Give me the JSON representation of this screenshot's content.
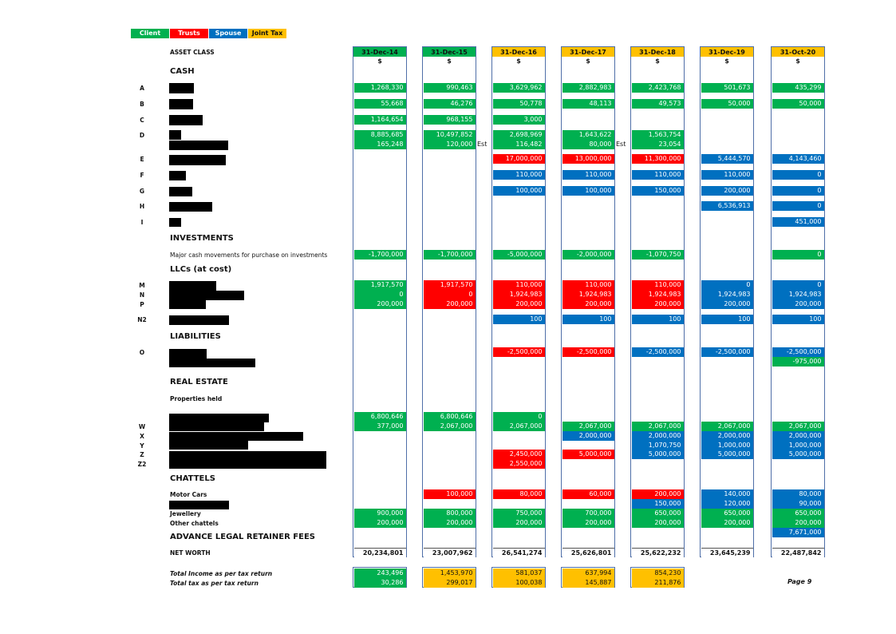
{
  "legend": [
    {
      "label": "Client",
      "color": "#00b050"
    },
    {
      "label": "Trusts",
      "color": "#ff0000"
    },
    {
      "label": "Spouse",
      "color": "#0070c0"
    },
    {
      "label": "Joint Tax",
      "color": "#ffc000"
    }
  ],
  "labels": {
    "asset_class": "ASSET CLASS",
    "cash": "CASH",
    "investments": "INVESTMENTS",
    "major_cash": "Major cash movements for purchase on investments",
    "llcs": "LLCs  (at cost)",
    "liabilities": "LIABILITIES",
    "real_estate": "REAL ESTATE",
    "properties_held": "Properties held",
    "chattels": "CHATTELS",
    "motor_cars": "Motor Cars",
    "jewellery": "Jewellery",
    "other_chattels": "Other chattels",
    "advance_legal": "ADVANCE LEGAL RETAINER FEES",
    "net_worth": "NET WORTH",
    "total_income": "Total Income as per tax return",
    "total_tax": "Total tax as per tax return",
    "page": "Page 9",
    "currency": "$",
    "est": "Est"
  },
  "letters": {
    "A": "A",
    "B": "B",
    "C": "C",
    "D": "D",
    "E": "E",
    "F": "F",
    "G": "G",
    "H": "H",
    "I": "I",
    "M": "M",
    "N": "N",
    "P": "P",
    "N2": "N2",
    "O": "O",
    "W": "W",
    "X": "X",
    "Y": "Y",
    "Z": "Z",
    "Z2": "Z2"
  },
  "colors": {
    "client": "#00b050",
    "trusts": "#ff0000",
    "spouse": "#0070c0",
    "joint_tax": "#ffc000",
    "border": "#4f6fa8"
  },
  "columns": [
    {
      "header": "31-Dec-14",
      "header_color": "G",
      "cells": [
        [
          "A",
          "1,268,330",
          "G"
        ],
        [
          "B",
          "55,668",
          "G"
        ],
        [
          "C",
          "1,164,654",
          "G"
        ],
        [
          "D1",
          "8,885,685",
          "G"
        ],
        [
          "D2",
          "165,248",
          "G"
        ],
        [
          "INV",
          "-1,700,000",
          "G"
        ],
        [
          "M",
          "1,917,570",
          "G"
        ],
        [
          "N",
          "0",
          "G"
        ],
        [
          "P",
          "200,000",
          "G"
        ],
        [
          "W0",
          "6,800,646",
          "G"
        ],
        [
          "W",
          "377,000",
          "G"
        ],
        [
          "J",
          "900,000",
          "G"
        ],
        [
          "OC",
          "200,000",
          "G"
        ],
        [
          "NW",
          "20,234,801",
          "W"
        ],
        [
          "TI",
          "243,496",
          "G"
        ],
        [
          "TT",
          "30,286",
          "G"
        ]
      ]
    },
    {
      "header": "31-Dec-15",
      "header_color": "G",
      "est": "D2",
      "cells": [
        [
          "A",
          "990,463",
          "G"
        ],
        [
          "B",
          "46,276",
          "G"
        ],
        [
          "C",
          "968,155",
          "G"
        ],
        [
          "D1",
          "10,497,852",
          "G"
        ],
        [
          "D2",
          "120,000",
          "G"
        ],
        [
          "INV",
          "-1,700,000",
          "G"
        ],
        [
          "M",
          "1,917,570",
          "R"
        ],
        [
          "N",
          "0",
          "R"
        ],
        [
          "P",
          "200,000",
          "R"
        ],
        [
          "W0",
          "6,800,646",
          "G"
        ],
        [
          "W",
          "2,067,000",
          "G"
        ],
        [
          "MC",
          "100,000",
          "R"
        ],
        [
          "J",
          "800,000",
          "G"
        ],
        [
          "OC",
          "200,000",
          "G"
        ],
        [
          "NW",
          "23,007,962",
          "W"
        ],
        [
          "TI",
          "1,453,970",
          "Y"
        ],
        [
          "TT",
          "299,017",
          "Y"
        ]
      ]
    },
    {
      "header": "31-Dec-16",
      "header_color": "Y",
      "cells": [
        [
          "A",
          "3,629,962",
          "G"
        ],
        [
          "B",
          "50,778",
          "G"
        ],
        [
          "C",
          "3,000",
          "G"
        ],
        [
          "D1",
          "2,698,969",
          "G"
        ],
        [
          "D2",
          "116,482",
          "G"
        ],
        [
          "E",
          "17,000,000",
          "R"
        ],
        [
          "F",
          "110,000",
          "B"
        ],
        [
          "G",
          "100,000",
          "B"
        ],
        [
          "INV",
          "-5,000,000",
          "G"
        ],
        [
          "M",
          "110,000",
          "R"
        ],
        [
          "N",
          "1,924,983",
          "R"
        ],
        [
          "P",
          "200,000",
          "R"
        ],
        [
          "N2",
          "100",
          "B"
        ],
        [
          "O1",
          "-2,500,000",
          "R"
        ],
        [
          "W0",
          "0",
          "G"
        ],
        [
          "W",
          "2,067,000",
          "G"
        ],
        [
          "Z",
          "2,450,000",
          "R"
        ],
        [
          "Z2",
          "2,550,000",
          "R"
        ],
        [
          "MC",
          "80,000",
          "R"
        ],
        [
          "J",
          "750,000",
          "G"
        ],
        [
          "OC",
          "200,000",
          "G"
        ],
        [
          "NW",
          "26,541,274",
          "W"
        ],
        [
          "TI",
          "581,037",
          "Y"
        ],
        [
          "TT",
          "100,038",
          "Y"
        ]
      ]
    },
    {
      "header": "31-Dec-17",
      "header_color": "Y",
      "est": "D2",
      "cells": [
        [
          "A",
          "2,882,983",
          "G"
        ],
        [
          "B",
          "48,113",
          "G"
        ],
        [
          "D1",
          "1,643,622",
          "G"
        ],
        [
          "D2",
          "80,000",
          "G"
        ],
        [
          "E",
          "13,000,000",
          "R"
        ],
        [
          "F",
          "110,000",
          "B"
        ],
        [
          "G",
          "100,000",
          "B"
        ],
        [
          "INV",
          "-2,000,000",
          "G"
        ],
        [
          "M",
          "110,000",
          "R"
        ],
        [
          "N",
          "1,924,983",
          "R"
        ],
        [
          "P",
          "200,000",
          "R"
        ],
        [
          "N2",
          "100",
          "B"
        ],
        [
          "O1",
          "-2,500,000",
          "R"
        ],
        [
          "W",
          "2,067,000",
          "G"
        ],
        [
          "X",
          "2,000,000",
          "B"
        ],
        [
          "Z",
          "5,000,000",
          "R"
        ],
        [
          "MC",
          "60,000",
          "R"
        ],
        [
          "J",
          "700,000",
          "G"
        ],
        [
          "OC",
          "200,000",
          "G"
        ],
        [
          "NW",
          "25,626,801",
          "W"
        ],
        [
          "TI",
          "637,994",
          "Y"
        ],
        [
          "TT",
          "145,887",
          "Y"
        ]
      ]
    },
    {
      "header": "31-Dec-18",
      "header_color": "Y",
      "cells": [
        [
          "A",
          "2,423,768",
          "G"
        ],
        [
          "B",
          "49,573",
          "G"
        ],
        [
          "D1",
          "1,563,754",
          "G"
        ],
        [
          "D2",
          "23,054",
          "G"
        ],
        [
          "E",
          "11,300,000",
          "R"
        ],
        [
          "F",
          "110,000",
          "B"
        ],
        [
          "G",
          "150,000",
          "B"
        ],
        [
          "INV",
          "-1,070,750",
          "G"
        ],
        [
          "M",
          "110,000",
          "R"
        ],
        [
          "N",
          "1,924,983",
          "R"
        ],
        [
          "P",
          "200,000",
          "R"
        ],
        [
          "N2",
          "100",
          "B"
        ],
        [
          "O1",
          "-2,500,000",
          "B"
        ],
        [
          "W",
          "2,067,000",
          "G"
        ],
        [
          "X",
          "2,000,000",
          "B"
        ],
        [
          "Y",
          "1,070,750",
          "B"
        ],
        [
          "Z",
          "5,000,000",
          "B"
        ],
        [
          "MC",
          "200,000",
          "R"
        ],
        [
          "MC2",
          "150,000",
          "B"
        ],
        [
          "J",
          "650,000",
          "G"
        ],
        [
          "OC",
          "200,000",
          "G"
        ],
        [
          "NW",
          "25,622,232",
          "W"
        ],
        [
          "TI",
          "854,230",
          "Y"
        ],
        [
          "TT",
          "211,876",
          "Y"
        ]
      ]
    },
    {
      "header": "31-Dec-19",
      "header_color": "Y",
      "cells": [
        [
          "A",
          "501,673",
          "G"
        ],
        [
          "B",
          "50,000",
          "G"
        ],
        [
          "E",
          "5,444,570",
          "B"
        ],
        [
          "F",
          "110,000",
          "B"
        ],
        [
          "G",
          "200,000",
          "B"
        ],
        [
          "H",
          "6,536,913",
          "B"
        ],
        [
          "M",
          "0",
          "B"
        ],
        [
          "N",
          "1,924,983",
          "B"
        ],
        [
          "P",
          "200,000",
          "B"
        ],
        [
          "N2",
          "100",
          "B"
        ],
        [
          "O1",
          "-2,500,000",
          "B"
        ],
        [
          "W",
          "2,067,000",
          "G"
        ],
        [
          "X",
          "2,000,000",
          "B"
        ],
        [
          "Y",
          "1,000,000",
          "B"
        ],
        [
          "Z",
          "5,000,000",
          "B"
        ],
        [
          "MC",
          "140,000",
          "B"
        ],
        [
          "MC2",
          "120,000",
          "B"
        ],
        [
          "J",
          "650,000",
          "G"
        ],
        [
          "OC",
          "200,000",
          "G"
        ],
        [
          "NW",
          "23,645,239",
          "W"
        ]
      ]
    },
    {
      "header": "31-Oct-20",
      "header_color": "Y",
      "cells": [
        [
          "A",
          "435,299",
          "G"
        ],
        [
          "B",
          "50,000",
          "G"
        ],
        [
          "E",
          "4,143,460",
          "B"
        ],
        [
          "F",
          "0",
          "B"
        ],
        [
          "G",
          "0",
          "B"
        ],
        [
          "H",
          "0",
          "B"
        ],
        [
          "I",
          "451,000",
          "B"
        ],
        [
          "INV",
          "0",
          "G"
        ],
        [
          "M",
          "0",
          "B"
        ],
        [
          "N",
          "1,924,983",
          "B"
        ],
        [
          "P",
          "200,000",
          "B"
        ],
        [
          "N2",
          "100",
          "B"
        ],
        [
          "O1",
          "-2,500,000",
          "B"
        ],
        [
          "O2",
          "-975,000",
          "G"
        ],
        [
          "W",
          "2,067,000",
          "G"
        ],
        [
          "X",
          "2,000,000",
          "B"
        ],
        [
          "Y",
          "1,000,000",
          "B"
        ],
        [
          "Z",
          "5,000,000",
          "B"
        ],
        [
          "MC",
          "80,000",
          "B"
        ],
        [
          "MC2",
          "90,000",
          "B"
        ],
        [
          "J",
          "650,000",
          "G"
        ],
        [
          "OC",
          "200,000",
          "G"
        ],
        [
          "ALR",
          "7,671,000",
          "B"
        ],
        [
          "NW",
          "22,487,842",
          "W"
        ]
      ]
    }
  ]
}
